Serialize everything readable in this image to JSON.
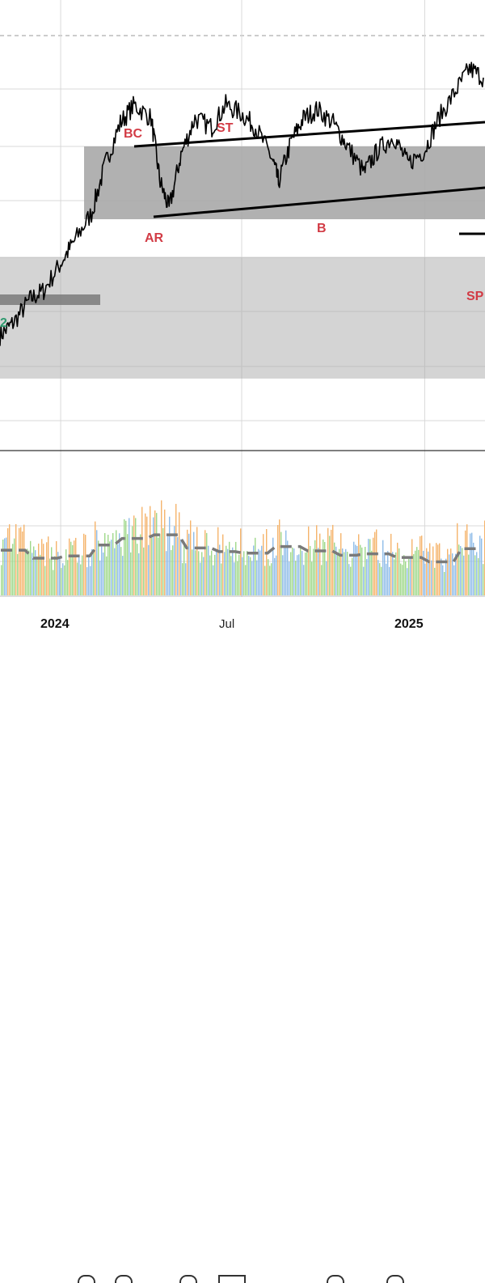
{
  "chart_data": {
    "type": "line",
    "series": [
      {
        "x": [
          "2023-11-01",
          "2023-11-15",
          "2023-12-01",
          "2023-12-15",
          "2024-01-01",
          "2024-01-15",
          "2024-02-01",
          "2024-02-15",
          "2024-03-01",
          "2024-03-15",
          "2024-04-01",
          "2024-04-10",
          "2024-04-19",
          "2024-05-01",
          "2024-05-15",
          "2024-06-01",
          "2024-06-15",
          "2024-07-01",
          "2024-07-15",
          "2024-08-01",
          "2024-08-07",
          "2024-08-20",
          "2024-09-01",
          "2024-09-15",
          "2024-10-01",
          "2024-10-15",
          "2024-11-01",
          "2024-11-15",
          "2024-12-01",
          "2024-12-15",
          "2025-01-01",
          "2025-01-15",
          "2025-02-01",
          "2025-02-15",
          "2025-03-01"
        ],
        "values": [
          7.5,
          7.8,
          8.3,
          8.5,
          9.1,
          9.6,
          10.2,
          11.3,
          12.2,
          12.6,
          12.3,
          10.9,
          10.3,
          11.5,
          12.3,
          12.1,
          12.6,
          12.4,
          12.1,
          11.4,
          10.9,
          11.8,
          12.3,
          12.5,
          12.2,
          11.7,
          11.1,
          11.6,
          11.9,
          11.3,
          11.6,
          12.3,
          12.9,
          13.4,
          13.2
        ]
      }
    ],
    "volume": {
      "x": [
        "2023-11",
        "2023-12",
        "2024-01",
        "2024-02",
        "2024-03",
        "2024-04",
        "2024-05",
        "2024-06",
        "2024-07",
        "2024-08",
        "2024-09",
        "2024-10",
        "2024-11",
        "2024-12",
        "2025-01",
        "2025-02",
        "2025-03"
      ],
      "values": [
        6.2,
        5.1,
        5.4,
        6.9,
        7.8,
        8.3,
        6.5,
        6.0,
        5.8,
        6.7,
        6.1,
        5.5,
        5.7,
        5.2,
        4.6,
        6.4,
        7.1
      ],
      "moving_average_style": "dashed"
    },
    "x_ticks": [
      "2024",
      "Jul",
      "2025"
    ],
    "grid": true,
    "zones": [
      {
        "name": "trading-range"
      },
      {
        "name": "lower-support-zone"
      }
    ],
    "annotations": [
      "BC",
      "ST",
      "AR",
      "B",
      "SP",
      "2"
    ],
    "colors": {
      "price_line": "#000000",
      "annotation_text": "#d23b45",
      "annotation_green": "#2f9a6f",
      "zone_fill": "#a9a9a9",
      "volume_up": "#9fd88a",
      "volume_down": "#8fbce8",
      "volume_high": "#f5b46b",
      "volume_ma": "#7a7a7a",
      "grid": "#d8d8d8"
    }
  }
}
